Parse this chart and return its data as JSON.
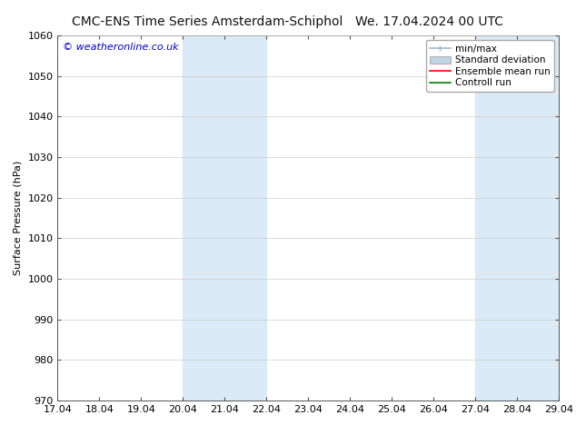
{
  "title_left": "CMC-ENS Time Series Amsterdam-Schiphol",
  "title_right": "We. 17.04.2024 00 UTC",
  "ylabel": "Surface Pressure (hPa)",
  "ylim": [
    970,
    1060
  ],
  "yticks": [
    970,
    980,
    990,
    1000,
    1010,
    1020,
    1030,
    1040,
    1050,
    1060
  ],
  "xlim_start": 0,
  "xlim_end": 12,
  "xtick_labels": [
    "17.04",
    "18.04",
    "19.04",
    "20.04",
    "21.04",
    "22.04",
    "23.04",
    "24.04",
    "25.04",
    "26.04",
    "27.04",
    "28.04",
    "29.04"
  ],
  "shaded_bands": [
    {
      "x_start": 3,
      "x_end": 5
    },
    {
      "x_start": 10,
      "x_end": 12
    }
  ],
  "shade_color": "#daeaf6",
  "watermark": "© weatheronline.co.uk",
  "watermark_color": "#0000cc",
  "bg_color": "#ffffff",
  "plot_bg_color": "#ffffff",
  "legend_items": [
    {
      "label": "min/max",
      "color": "#a0b8c8"
    },
    {
      "label": "Standard deviation",
      "color": "#c0d4e4"
    },
    {
      "label": "Ensemble mean run",
      "color": "#ff0000"
    },
    {
      "label": "Controll run",
      "color": "#008000"
    }
  ],
  "title_fontsize": 10,
  "axis_label_fontsize": 8,
  "tick_fontsize": 8,
  "watermark_fontsize": 8,
  "legend_fontsize": 7.5,
  "grid_color": "#cccccc",
  "axis_color": "#555555",
  "spine_color": "#555555"
}
